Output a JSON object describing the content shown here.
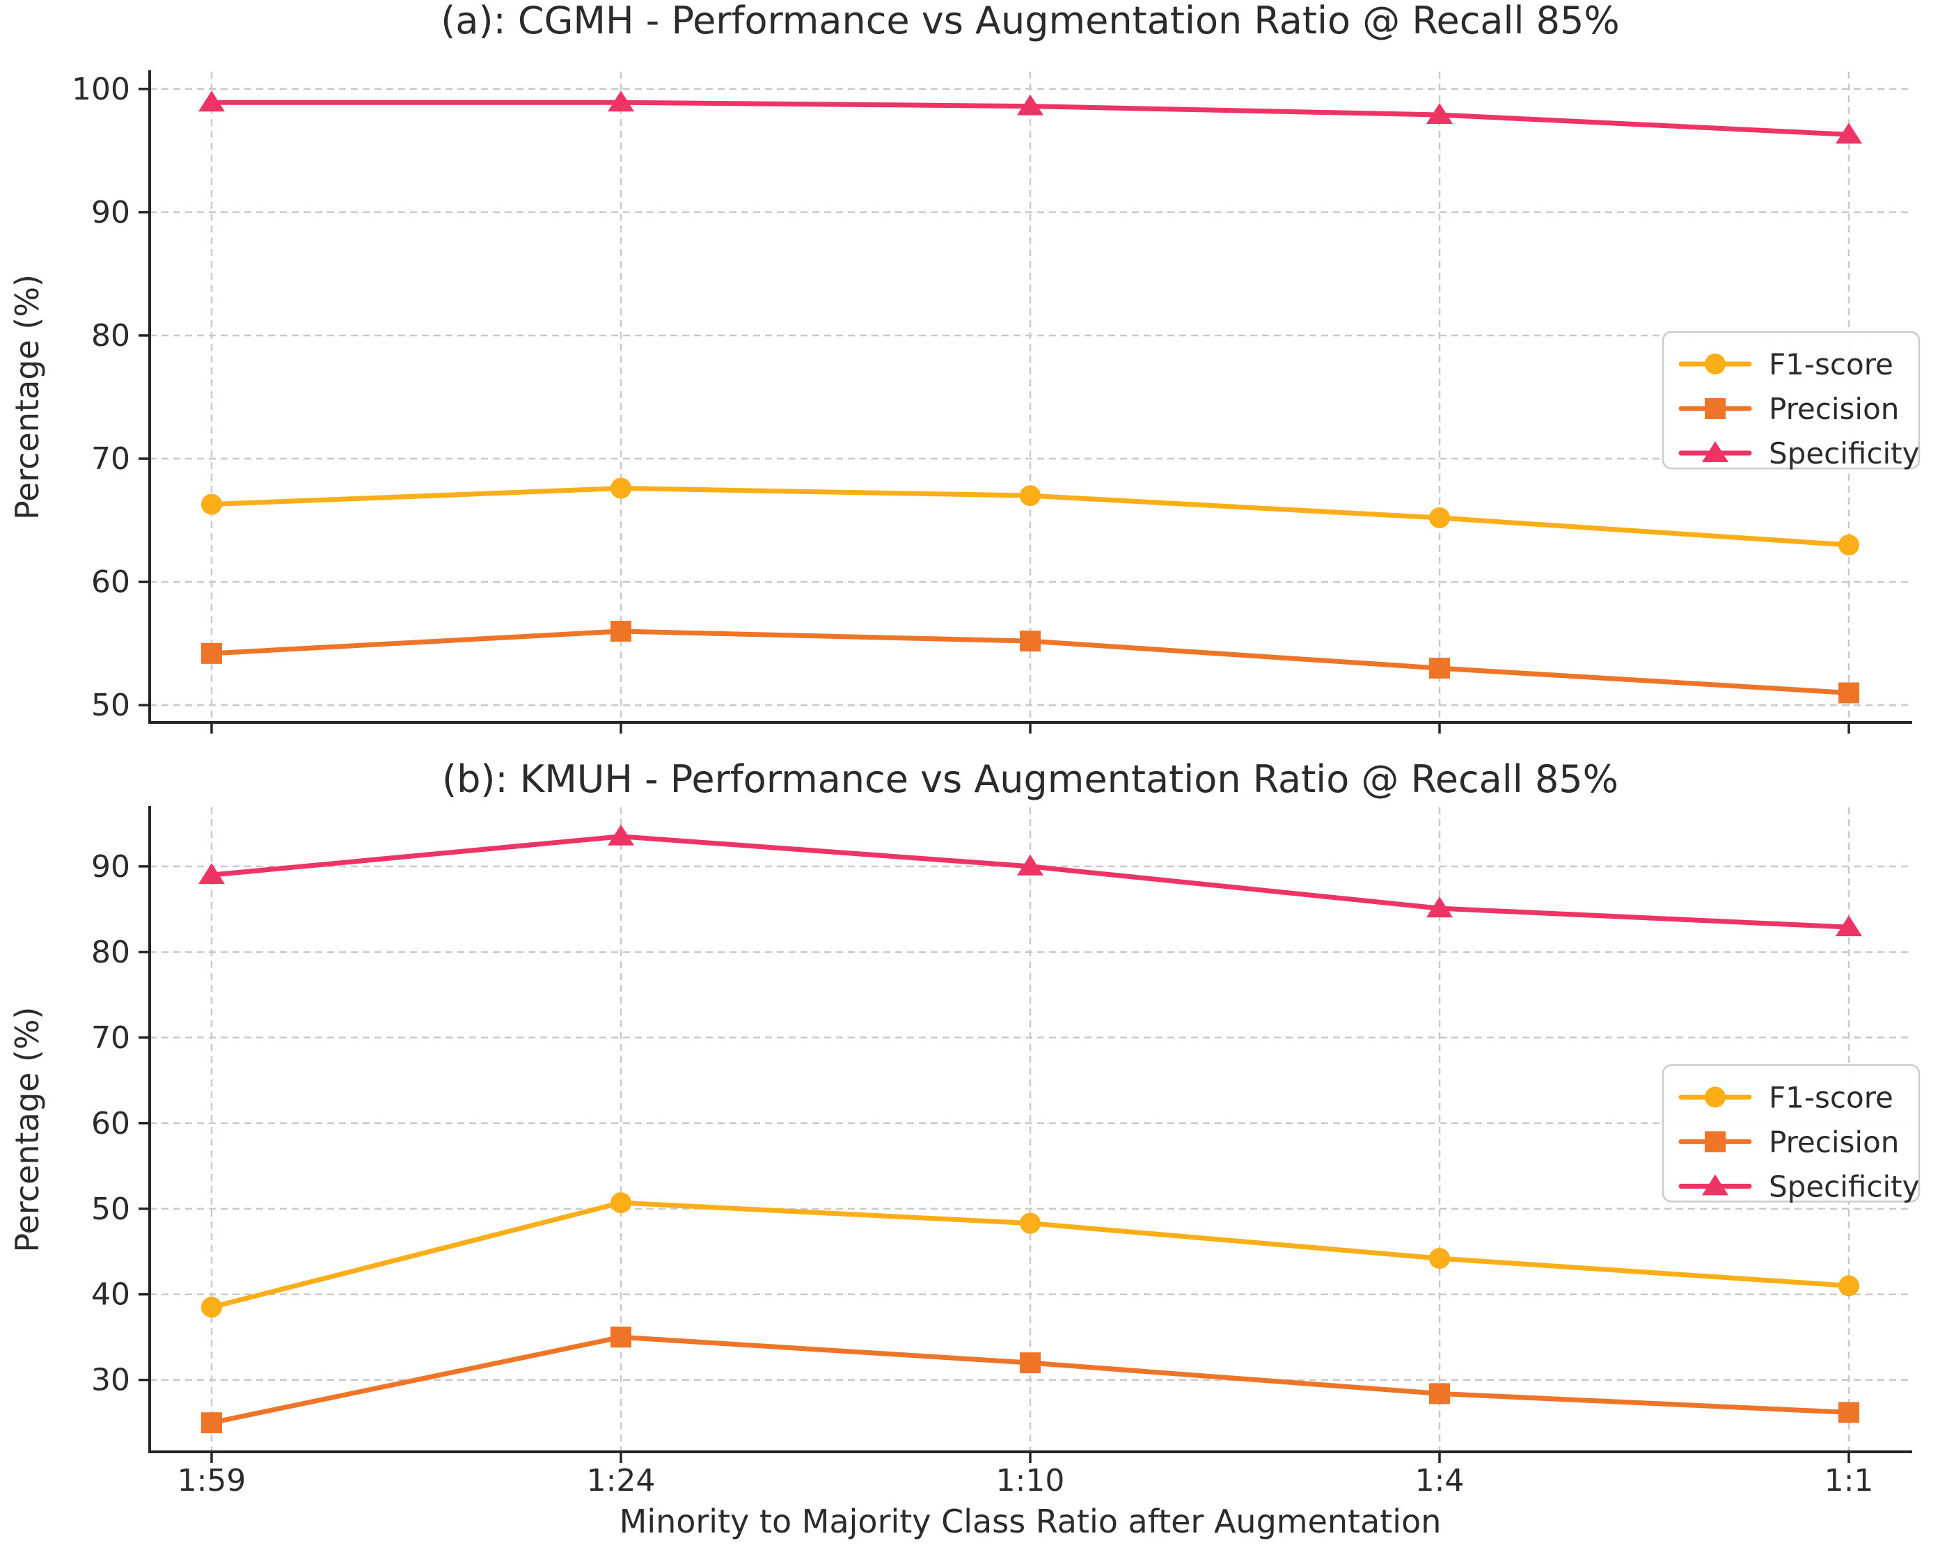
{
  "figure": {
    "background": "#ffffff",
    "text_color": "#2b2b2b",
    "grid_color": "#c9c9c9",
    "spine_color": "#262626",
    "legend_border_color": "#cccccc",
    "legend_background": "#ffffff"
  },
  "xlabel": "Minority to Majority Class Ratio after Augmentation",
  "chart_data": [
    {
      "type": "line",
      "title": "(a): CGMH - Performance vs Augmentation Ratio @ Recall 85%",
      "xlabel": "",
      "ylabel": "Percentage (%)",
      "categories": [
        "1:59",
        "1:24",
        "1:10",
        "1:4",
        "1:1"
      ],
      "series": [
        {
          "name": "F1-score",
          "color": "#FBAE17",
          "marker": "circle",
          "values": [
            66.3,
            67.6,
            67.0,
            65.2,
            63.0
          ]
        },
        {
          "name": "Precision",
          "color": "#EE7528",
          "marker": "square",
          "values": [
            54.2,
            56.0,
            55.2,
            53.0,
            51.0
          ]
        },
        {
          "name": "Specificity",
          "color": "#EE3365",
          "marker": "triangle",
          "values": [
            98.9,
            98.9,
            98.6,
            97.9,
            96.3
          ]
        }
      ],
      "ylim": [
        48.6,
        101.4
      ],
      "yticks": [
        50,
        60,
        70,
        80,
        90,
        100
      ],
      "grid": true,
      "legend_position": "center-right",
      "x_tick_labels_visible": false
    },
    {
      "type": "line",
      "title": "(b): KMUH - Performance vs Augmentation Ratio @ Recall 85%",
      "xlabel": "Minority to Majority Class Ratio after Augmentation",
      "ylabel": "Percentage (%)",
      "categories": [
        "1:59",
        "1:24",
        "1:10",
        "1:4",
        "1:1"
      ],
      "series": [
        {
          "name": "F1-score",
          "color": "#FBAE17",
          "marker": "circle",
          "values": [
            38.5,
            50.7,
            48.3,
            44.2,
            41.0
          ]
        },
        {
          "name": "Precision",
          "color": "#EE7528",
          "marker": "square",
          "values": [
            25.0,
            35.0,
            32.0,
            28.4,
            26.2
          ]
        },
        {
          "name": "Specificity",
          "color": "#EE3365",
          "marker": "triangle",
          "values": [
            89.0,
            93.5,
            90.0,
            85.1,
            82.9
          ]
        }
      ],
      "ylim": [
        21.6,
        96.9
      ],
      "yticks": [
        30,
        40,
        50,
        60,
        70,
        80,
        90
      ],
      "grid": true,
      "legend_position": "center-right",
      "x_tick_labels_visible": true
    }
  ]
}
